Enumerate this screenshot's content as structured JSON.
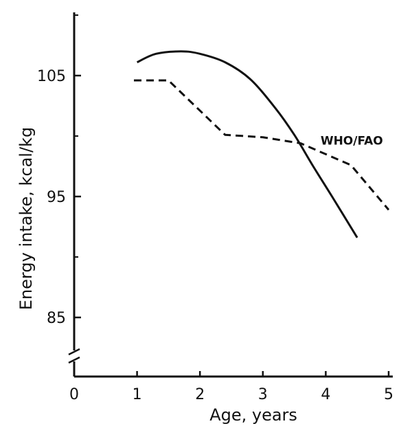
{
  "chart_data": {
    "type": "line",
    "title": "",
    "xlabel": "Age, years",
    "ylabel": "Energy intake, kcal/kg",
    "xlim": [
      0,
      5
    ],
    "ylim": [
      80,
      110
    ],
    "x_ticks": [
      "0",
      "1",
      "2",
      "3",
      "4",
      "5"
    ],
    "y_ticks": [
      "85",
      "95",
      "105"
    ],
    "y_tick_values": [
      85,
      95,
      105
    ],
    "y_axis_break": true,
    "grid": false,
    "series": [
      {
        "name": "",
        "style": "solid",
        "x": [
          1.0,
          1.3,
          1.7,
          2.0,
          2.4,
          2.8,
          3.2,
          3.5,
          3.8,
          4.1,
          4.5
        ],
        "y": [
          106.1,
          106.8,
          107.0,
          106.8,
          106.1,
          104.7,
          102.3,
          100.1,
          97.5,
          95.0,
          91.6
        ]
      },
      {
        "name": "WHO/FAO",
        "style": "dashed",
        "x": [
          0.95,
          1.5,
          2.4,
          3.0,
          3.6,
          4.4,
          5.0
        ],
        "y": [
          104.6,
          104.6,
          100.1,
          99.9,
          99.4,
          97.6,
          93.9
        ]
      }
    ],
    "annotations": [
      {
        "text": "WHO/FAO",
        "series": "WHO/FAO"
      }
    ]
  }
}
